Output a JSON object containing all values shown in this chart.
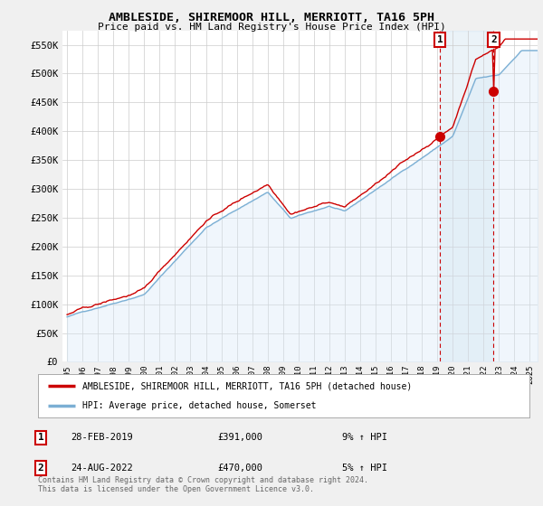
{
  "title": "AMBLESIDE, SHIREMOOR HILL, MERRIOTT, TA16 5PH",
  "subtitle": "Price paid vs. HM Land Registry's House Price Index (HPI)",
  "ylim": [
    0,
    575000
  ],
  "yticks": [
    0,
    50000,
    100000,
    150000,
    200000,
    250000,
    300000,
    350000,
    400000,
    450000,
    500000,
    550000
  ],
  "ytick_labels": [
    "£0",
    "£50K",
    "£100K",
    "£150K",
    "£200K",
    "£250K",
    "£300K",
    "£350K",
    "£400K",
    "£450K",
    "£500K",
    "£550K"
  ],
  "x_start": 1995.0,
  "x_end": 2025.5,
  "sale1_x": 2019.17,
  "sale1_y": 391000,
  "sale2_x": 2022.65,
  "sale2_y": 470000,
  "property_color": "#cc0000",
  "hpi_color": "#7bafd4",
  "hpi_fill_color": "#d6e8f7",
  "shaded_fill_color": "#ddeeff",
  "background_color": "#f0f0f0",
  "plot_bg_color": "#ffffff",
  "grid_color": "#cccccc",
  "annotation_color": "#cc0000",
  "legend_label_property": "AMBLESIDE, SHIREMOOR HILL, MERRIOTT, TA16 5PH (detached house)",
  "legend_label_hpi": "HPI: Average price, detached house, Somerset",
  "note1_num": "1",
  "note1_date": "28-FEB-2019",
  "note1_price": "£391,000",
  "note1_hpi": "9% ↑ HPI",
  "note2_num": "2",
  "note2_date": "24-AUG-2022",
  "note2_price": "£470,000",
  "note2_hpi": "5% ↑ HPI",
  "footer": "Contains HM Land Registry data © Crown copyright and database right 2024.\nThis data is licensed under the Open Government Licence v3.0.",
  "xtick_years": [
    1995,
    1996,
    1997,
    1998,
    1999,
    2000,
    2001,
    2002,
    2003,
    2004,
    2005,
    2006,
    2007,
    2008,
    2009,
    2010,
    2011,
    2012,
    2013,
    2014,
    2015,
    2016,
    2017,
    2018,
    2019,
    2020,
    2021,
    2022,
    2023,
    2024,
    2025
  ]
}
